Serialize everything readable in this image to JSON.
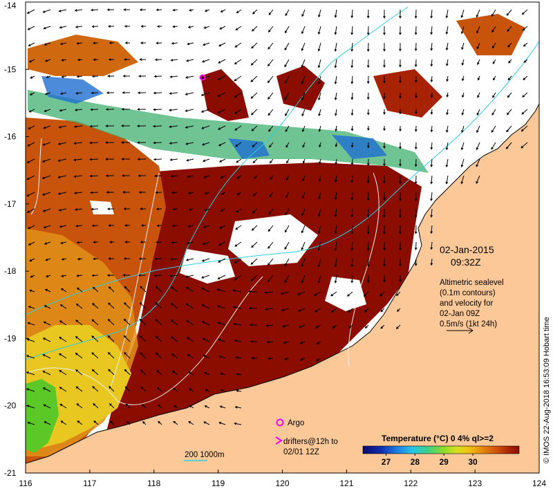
{
  "axes": {
    "x_ticks": [
      "116",
      "117",
      "118",
      "119",
      "120",
      "121",
      "122",
      "123",
      "124"
    ],
    "y_ticks": [
      "-14",
      "-15",
      "-16",
      "-17",
      "-18",
      "-19",
      "-20",
      "-21"
    ],
    "x_range": [
      116,
      124
    ],
    "y_range": [
      -21,
      -14
    ]
  },
  "info": {
    "date": "02-Jan-2015",
    "time": "09:32Z",
    "desc_line1": "Altimetric sealevel",
    "desc_line2": "(0.1m contours)",
    "desc_line3": "and velocity for",
    "desc_line4": "02-Jan 09Z",
    "scale_label": "0.5m/s (1kt 24h)"
  },
  "legend": {
    "argo_label": "Argo",
    "drifters_line1": "drifters@12h to",
    "drifters_line2": "02/01 12Z",
    "isobath_label": "200  1000m"
  },
  "colorbar": {
    "title": "Temperature (°C) 0 4% ql>=2",
    "ticks": [
      "27",
      "28",
      "29",
      "30"
    ],
    "colors": [
      "#0a0a6e",
      "#1030b0",
      "#1e7ee0",
      "#26c6e6",
      "#40d080",
      "#8edc28",
      "#d8e020",
      "#f0c010",
      "#e88a10",
      "#d05008",
      "#a82204",
      "#8a0e00"
    ]
  },
  "credit": "© IMOS 22-Aug-2018 16:53:09 Hobart time",
  "colors": {
    "land": "#fcc898",
    "ocean_warm": "#8b0d00",
    "ocean_mid": "#c8540c",
    "ocean_orange": "#e0901a",
    "ocean_yellow": "#e8c820",
    "ocean_green": "#5cc828",
    "contour": "#e8f0f0",
    "isobath": "#28d0e0",
    "argo": "#ff00ff"
  }
}
